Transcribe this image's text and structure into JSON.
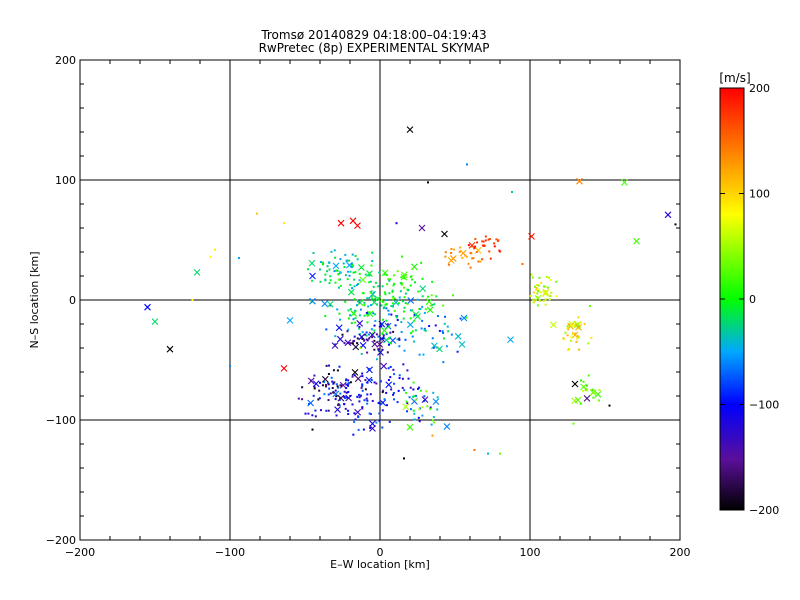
{
  "chart_data": {
    "type": "scatter",
    "title": "Tromsø 20140829 04:18:00–04:19:43",
    "subtitle": "RwPretec (8p) EXPERIMENTAL SKYMAP",
    "xlabel": "E–W location [km]",
    "ylabel": "N–S location [km]",
    "xlim": [
      -200,
      200
    ],
    "ylim": [
      -200,
      200
    ],
    "xticks": [
      -200,
      -100,
      0,
      100,
      200
    ],
    "yticks": [
      -200,
      -100,
      0,
      100,
      200
    ],
    "grid": true,
    "colorbar": {
      "label": "[m/s]",
      "range": [
        -200,
        200
      ],
      "ticks": [
        -200,
        -100,
        0,
        100,
        200
      ],
      "colormap": "rainbow (black-purple-blue-cyan-green-yellow-orange-red)"
    },
    "points": [
      {
        "x": 20,
        "y": 142,
        "v": -200,
        "m": "x"
      },
      {
        "x": 58,
        "y": 113,
        "v": -60,
        "m": "."
      },
      {
        "x": 32,
        "y": 98,
        "v": -200,
        "m": "."
      },
      {
        "x": 88,
        "y": 90,
        "v": -20,
        "m": "."
      },
      {
        "x": 133,
        "y": 99,
        "v": 140,
        "m": "x"
      },
      {
        "x": 163,
        "y": 98,
        "v": 20,
        "m": "x"
      },
      {
        "x": 192,
        "y": 71,
        "v": -120,
        "m": "x"
      },
      {
        "x": 197,
        "y": 63,
        "v": -200,
        "m": "."
      },
      {
        "x": 171,
        "y": 49,
        "v": 20,
        "m": "x"
      },
      {
        "x": -82,
        "y": 72,
        "v": 110,
        "m": "."
      },
      {
        "x": -64,
        "y": 64,
        "v": 90,
        "m": "."
      },
      {
        "x": -26,
        "y": 64,
        "v": 200,
        "m": "x"
      },
      {
        "x": -18,
        "y": 66,
        "v": 200,
        "m": "x"
      },
      {
        "x": -15,
        "y": 62,
        "v": 200,
        "m": "x"
      },
      {
        "x": 11,
        "y": 64,
        "v": -110,
        "m": "."
      },
      {
        "x": 28,
        "y": 60,
        "v": -150,
        "m": "x"
      },
      {
        "x": 43,
        "y": 55,
        "v": -200,
        "m": "x"
      },
      {
        "x": -110,
        "y": 42,
        "v": 90,
        "m": "."
      },
      {
        "x": -113,
        "y": 36,
        "v": 80,
        "m": "."
      },
      {
        "x": -94,
        "y": 35,
        "v": -50,
        "m": "."
      },
      {
        "x": -122,
        "y": 23,
        "v": -20,
        "m": "x"
      },
      {
        "x": -45,
        "y": 20,
        "v": -90,
        "m": "x"
      },
      {
        "x": -155,
        "y": -6,
        "v": -100,
        "m": "x"
      },
      {
        "x": -150,
        "y": -18,
        "v": -20,
        "m": "x"
      },
      {
        "x": -125,
        "y": 0,
        "v": 80,
        "m": "."
      },
      {
        "x": -140,
        "y": -41,
        "v": -200,
        "m": "x"
      },
      {
        "x": -45,
        "y": -1,
        "v": -60,
        "m": "x"
      },
      {
        "x": -60,
        "y": -17,
        "v": -50,
        "m": "x"
      },
      {
        "x": -100,
        "y": -55,
        "v": -60,
        "m": "."
      },
      {
        "x": -64,
        "y": -57,
        "v": 200,
        "m": "x"
      },
      {
        "x": 56,
        "y": -15,
        "v": -60,
        "m": "x"
      },
      {
        "x": 87,
        "y": -33,
        "v": -50,
        "m": "x"
      },
      {
        "x": 101,
        "y": 53,
        "v": 190,
        "m": "x"
      },
      {
        "x": 95,
        "y": 30,
        "v": 150,
        "m": "."
      },
      {
        "x": 20,
        "y": -106,
        "v": 20,
        "m": "x"
      },
      {
        "x": 16,
        "y": -132,
        "v": -200,
        "m": "."
      },
      {
        "x": -5,
        "y": -103,
        "v": -110,
        "m": "x"
      },
      {
        "x": -5,
        "y": -107,
        "v": -130,
        "m": "x"
      },
      {
        "x": -45,
        "y": -108,
        "v": -200,
        "m": "."
      },
      {
        "x": 35,
        "y": -113,
        "v": 130,
        "m": "."
      },
      {
        "x": 63,
        "y": -125,
        "v": 150,
        "m": "."
      },
      {
        "x": 72,
        "y": -128,
        "v": -40,
        "m": "."
      },
      {
        "x": 80,
        "y": -128,
        "v": 30,
        "m": "."
      },
      {
        "x": 130,
        "y": -70,
        "v": -200,
        "m": "x"
      },
      {
        "x": 138,
        "y": -82,
        "v": -160,
        "m": "x"
      },
      {
        "x": 153,
        "y": -88,
        "v": -200,
        "m": "."
      },
      {
        "x": 129,
        "y": -103,
        "v": 30,
        "m": "."
      },
      {
        "x": 140,
        "y": -5,
        "v": 30,
        "m": "."
      },
      {
        "x": 30,
        "y": -83,
        "v": -130,
        "m": "x"
      },
      {
        "x": -30,
        "y": -38,
        "v": -140,
        "m": "x"
      },
      {
        "x": -13,
        "y": -40,
        "v": 40,
        "m": "."
      }
    ],
    "clusters": [
      {
        "cx": -25,
        "cy": 24,
        "sx": 10,
        "sy": 8,
        "n": 70,
        "vmin": -60,
        "vmax": 10
      },
      {
        "cx": 10,
        "cy": 12,
        "sx": 14,
        "sy": 10,
        "n": 80,
        "vmin": -30,
        "vmax": 40
      },
      {
        "cx": 0,
        "cy": -6,
        "sx": 18,
        "sy": 8,
        "n": 90,
        "vmin": -70,
        "vmax": 20
      },
      {
        "cx": 10,
        "cy": -30,
        "sx": 22,
        "sy": 10,
        "n": 90,
        "vmin": -120,
        "vmax": 10
      },
      {
        "cx": -8,
        "cy": -34,
        "sx": 10,
        "sy": 6,
        "n": 40,
        "vmin": -200,
        "vmax": -120
      },
      {
        "cx": -10,
        "cy": -80,
        "sx": 18,
        "sy": 12,
        "n": 150,
        "vmin": -140,
        "vmax": -60
      },
      {
        "cx": -28,
        "cy": -72,
        "sx": 12,
        "sy": 8,
        "n": 40,
        "vmin": -200,
        "vmax": -140
      },
      {
        "cx": 55,
        "cy": 37,
        "sx": 8,
        "sy": 5,
        "n": 25,
        "vmin": 110,
        "vmax": 150
      },
      {
        "cx": 72,
        "cy": 43,
        "sx": 6,
        "sy": 6,
        "n": 25,
        "vmin": 160,
        "vmax": 200
      },
      {
        "cx": 108,
        "cy": 8,
        "sx": 5,
        "sy": 6,
        "n": 40,
        "vmin": 30,
        "vmax": 110
      },
      {
        "cx": 129,
        "cy": -26,
        "sx": 5,
        "sy": 7,
        "n": 40,
        "vmin": 40,
        "vmax": 120
      },
      {
        "cx": 139,
        "cy": -75,
        "sx": 4,
        "sy": 6,
        "n": 20,
        "vmin": 10,
        "vmax": 70
      },
      {
        "cx": 25,
        "cy": -88,
        "sx": 10,
        "sy": 8,
        "n": 30,
        "vmin": -90,
        "vmax": 60
      }
    ]
  }
}
